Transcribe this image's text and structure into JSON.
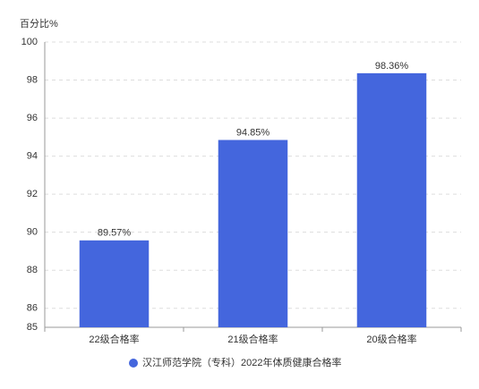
{
  "chart_data": {
    "type": "bar",
    "y_axis_label": "百分比%",
    "categories": [
      "22级合格率",
      "21级合格率",
      "20级合格率"
    ],
    "series": [
      {
        "name": "汉江师范学院（专科）2022年体质健康合格率",
        "color": "#4466dd",
        "values": [
          89.57,
          94.85,
          98.36
        ],
        "value_labels": [
          "89.57%",
          "94.85%",
          "98.36%"
        ]
      }
    ],
    "ylim": [
      85,
      100
    ],
    "yticks": [
      85,
      86,
      88,
      90,
      92,
      94,
      96,
      98,
      100
    ],
    "grid": true
  }
}
